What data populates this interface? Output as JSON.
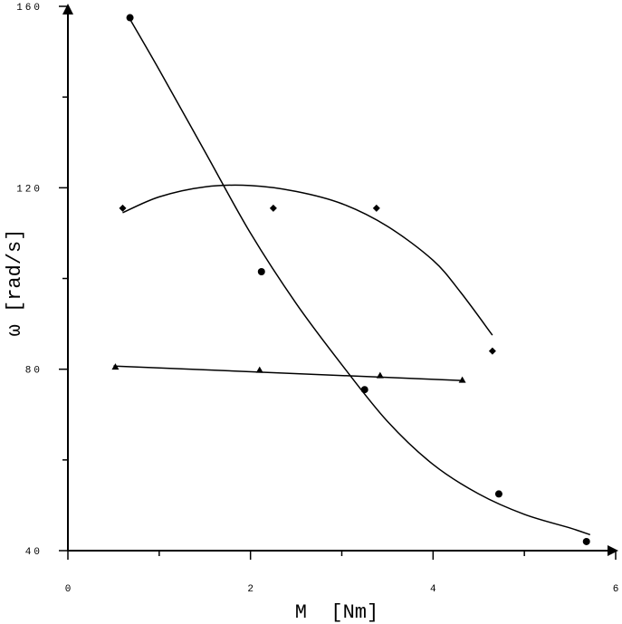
{
  "chart_data": {
    "type": "scatter",
    "title": "",
    "xlabel": "M  [Nm]",
    "ylabel": "ω [rad/s]",
    "xlim": [
      0,
      6
    ],
    "ylim": [
      40,
      160
    ],
    "x_major_ticks": [
      0,
      2,
      4,
      6
    ],
    "x_tick_labels": [
      "0",
      "2",
      "4",
      "6"
    ],
    "x_minor_ticks": [
      1,
      3,
      5
    ],
    "y_major_ticks": [
      40,
      80,
      120,
      160
    ],
    "y_tick_labels": [
      "40",
      "80",
      "120",
      "160"
    ],
    "y_minor_ticks": [
      60,
      100,
      140
    ],
    "grid": false,
    "legend": "none",
    "series": [
      {
        "marker": "circle",
        "points": [
          [
            0.68,
            157.5
          ],
          [
            2.12,
            101.5
          ],
          [
            3.25,
            75.5
          ],
          [
            4.72,
            52.5
          ],
          [
            5.68,
            42.0
          ]
        ],
        "trend": "cubic",
        "fit_points": [
          [
            0.67,
            157.5
          ],
          [
            1.0,
            146.0
          ],
          [
            1.5,
            128.0
          ],
          [
            2.0,
            110.0
          ],
          [
            2.5,
            94.5
          ],
          [
            3.0,
            81.0
          ],
          [
            3.5,
            68.5
          ],
          [
            4.0,
            59.0
          ],
          [
            4.5,
            52.5
          ],
          [
            5.0,
            48.0
          ],
          [
            5.5,
            45.0
          ],
          [
            5.72,
            43.5
          ]
        ]
      },
      {
        "marker": "diamond",
        "points": [
          [
            0.6,
            115.5
          ],
          [
            2.25,
            115.5
          ],
          [
            3.38,
            115.5
          ],
          [
            4.65,
            84.0
          ]
        ],
        "trend": "quadratic",
        "fit_points": [
          [
            0.6,
            114.5
          ],
          [
            1.0,
            118.0
          ],
          [
            1.5,
            120.2
          ],
          [
            2.0,
            120.5
          ],
          [
            2.5,
            119.2
          ],
          [
            3.0,
            116.5
          ],
          [
            3.5,
            111.5
          ],
          [
            4.0,
            104.0
          ],
          [
            4.3,
            97.0
          ],
          [
            4.65,
            87.5
          ]
        ]
      },
      {
        "marker": "triangle",
        "points": [
          [
            0.52,
            80.5
          ],
          [
            2.1,
            79.8
          ],
          [
            3.42,
            78.6
          ],
          [
            4.32,
            77.6
          ]
        ],
        "trend": "linear",
        "fit_points": [
          [
            0.5,
            80.7
          ],
          [
            4.32,
            77.5
          ]
        ]
      }
    ]
  }
}
